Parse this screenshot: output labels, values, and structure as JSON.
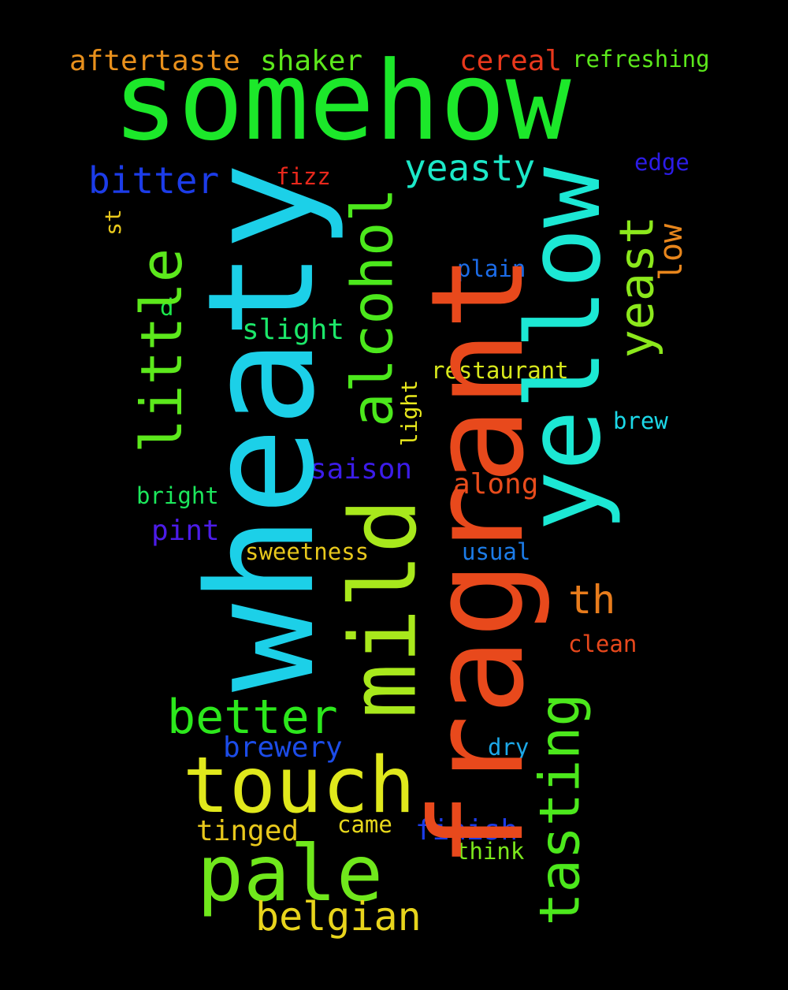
{
  "words": {
    "somehow": {
      "text": "somehow",
      "color": "#1ce82a"
    },
    "fragrant": {
      "text": "fragrant",
      "color": "#e8491c"
    },
    "wheaty": {
      "text": "wheaty",
      "color": "#1cd0e8"
    },
    "yellow": {
      "text": "yellow",
      "color": "#1ce8d4"
    },
    "mild": {
      "text": "mild",
      "color": "#a8e81c"
    },
    "touch": {
      "text": "touch",
      "color": "#e0e81c"
    },
    "pale": {
      "text": "pale",
      "color": "#70e81c"
    },
    "little": {
      "text": "little",
      "color": "#5ce81c"
    },
    "alcohol": {
      "text": "alcohol",
      "color": "#4ce81c"
    },
    "tasting": {
      "text": "tasting",
      "color": "#4ce81c"
    },
    "yeast": {
      "text": "yeast",
      "color": "#8ce81c"
    },
    "better": {
      "text": "better",
      "color": "#2ce81c"
    },
    "belgian": {
      "text": "belgian",
      "color": "#e8d41c"
    },
    "yeasty": {
      "text": "yeasty",
      "color": "#1ce8c8"
    },
    "bitter": {
      "text": "bitter",
      "color": "#1c3ce8"
    },
    "aftertaste": {
      "text": "aftertaste",
      "color": "#e8901c"
    },
    "shaker": {
      "text": "shaker",
      "color": "#5ce81c"
    },
    "cereal": {
      "text": "cereal",
      "color": "#e8381c"
    },
    "refreshing": {
      "text": "refreshing",
      "color": "#5ce81c"
    },
    "edge": {
      "text": "edge",
      "color": "#2c1ce8"
    },
    "fizz": {
      "text": "fizz",
      "color": "#e8281c"
    },
    "st": {
      "text": "st",
      "color": "#e8c81c"
    },
    "d": {
      "text": "d",
      "color": "#1ce84c"
    },
    "low": {
      "text": "low",
      "color": "#e8861c"
    },
    "plain": {
      "text": "plain",
      "color": "#1c6ce8"
    },
    "slight": {
      "text": "slight",
      "color": "#1ce86a"
    },
    "restaurant": {
      "text": "restaurant",
      "color": "#d8e81c"
    },
    "light": {
      "text": "light",
      "color": "#e8e81c"
    },
    "brew": {
      "text": "brew",
      "color": "#1cd8e8"
    },
    "saison": {
      "text": "saison",
      "color": "#3c1ce8"
    },
    "along": {
      "text": "along",
      "color": "#e84c1c"
    },
    "bright": {
      "text": "bright",
      "color": "#1ce85c"
    },
    "pint": {
      "text": "pint",
      "color": "#4c1ce8"
    },
    "sweetness": {
      "text": "sweetness",
      "color": "#e8c81c"
    },
    "usual": {
      "text": "usual",
      "color": "#1c7ce8"
    },
    "th": {
      "text": "th",
      "color": "#e87c1c"
    },
    "clean": {
      "text": "clean",
      "color": "#e8481c"
    },
    "brewery": {
      "text": "brewery",
      "color": "#1c4ce8"
    },
    "dry": {
      "text": "dry",
      "color": "#1ca8e8"
    },
    "tinged": {
      "text": "tinged",
      "color": "#e8c81c"
    },
    "came": {
      "text": "came",
      "color": "#e8d81c"
    },
    "finish": {
      "text": "finish",
      "color": "#1c3ce8"
    },
    "think": {
      "text": "think",
      "color": "#7ce81c"
    }
  }
}
